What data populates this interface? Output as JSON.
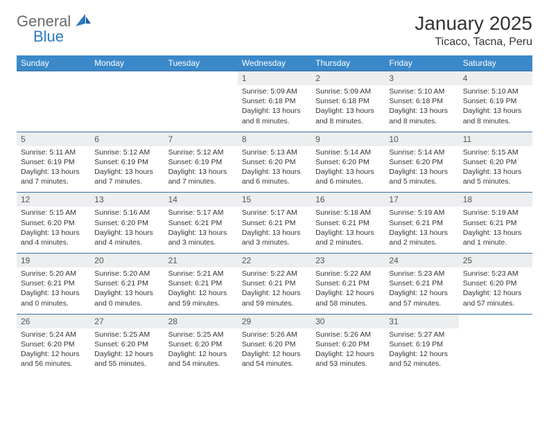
{
  "brand": {
    "name1": "General",
    "name2": "Blue"
  },
  "title": {
    "month": "January 2025",
    "location": "Ticaco, Tacna, Peru"
  },
  "colors": {
    "header_bg": "#3b89c9",
    "header_text": "#ffffff",
    "row_border": "#3b6fa3",
    "daynum_bg": "#eceef0",
    "logo_gray": "#6a6a6a",
    "logo_blue": "#2b7bbf"
  },
  "weekdays": [
    "Sunday",
    "Monday",
    "Tuesday",
    "Wednesday",
    "Thursday",
    "Friday",
    "Saturday"
  ],
  "weeks": [
    [
      null,
      null,
      null,
      {
        "n": "1",
        "sr": "5:09 AM",
        "ss": "6:18 PM",
        "d1": "13 hours",
        "d2": "and 8 minutes."
      },
      {
        "n": "2",
        "sr": "5:09 AM",
        "ss": "6:18 PM",
        "d1": "13 hours",
        "d2": "and 8 minutes."
      },
      {
        "n": "3",
        "sr": "5:10 AM",
        "ss": "6:18 PM",
        "d1": "13 hours",
        "d2": "and 8 minutes."
      },
      {
        "n": "4",
        "sr": "5:10 AM",
        "ss": "6:19 PM",
        "d1": "13 hours",
        "d2": "and 8 minutes."
      }
    ],
    [
      {
        "n": "5",
        "sr": "5:11 AM",
        "ss": "6:19 PM",
        "d1": "13 hours",
        "d2": "and 7 minutes."
      },
      {
        "n": "6",
        "sr": "5:12 AM",
        "ss": "6:19 PM",
        "d1": "13 hours",
        "d2": "and 7 minutes."
      },
      {
        "n": "7",
        "sr": "5:12 AM",
        "ss": "6:19 PM",
        "d1": "13 hours",
        "d2": "and 7 minutes."
      },
      {
        "n": "8",
        "sr": "5:13 AM",
        "ss": "6:20 PM",
        "d1": "13 hours",
        "d2": "and 6 minutes."
      },
      {
        "n": "9",
        "sr": "5:14 AM",
        "ss": "6:20 PM",
        "d1": "13 hours",
        "d2": "and 6 minutes."
      },
      {
        "n": "10",
        "sr": "5:14 AM",
        "ss": "6:20 PM",
        "d1": "13 hours",
        "d2": "and 5 minutes."
      },
      {
        "n": "11",
        "sr": "5:15 AM",
        "ss": "6:20 PM",
        "d1": "13 hours",
        "d2": "and 5 minutes."
      }
    ],
    [
      {
        "n": "12",
        "sr": "5:15 AM",
        "ss": "6:20 PM",
        "d1": "13 hours",
        "d2": "and 4 minutes."
      },
      {
        "n": "13",
        "sr": "5:16 AM",
        "ss": "6:20 PM",
        "d1": "13 hours",
        "d2": "and 4 minutes."
      },
      {
        "n": "14",
        "sr": "5:17 AM",
        "ss": "6:21 PM",
        "d1": "13 hours",
        "d2": "and 3 minutes."
      },
      {
        "n": "15",
        "sr": "5:17 AM",
        "ss": "6:21 PM",
        "d1": "13 hours",
        "d2": "and 3 minutes."
      },
      {
        "n": "16",
        "sr": "5:18 AM",
        "ss": "6:21 PM",
        "d1": "13 hours",
        "d2": "and 2 minutes."
      },
      {
        "n": "17",
        "sr": "5:19 AM",
        "ss": "6:21 PM",
        "d1": "13 hours",
        "d2": "and 2 minutes."
      },
      {
        "n": "18",
        "sr": "5:19 AM",
        "ss": "6:21 PM",
        "d1": "13 hours",
        "d2": "and 1 minute."
      }
    ],
    [
      {
        "n": "19",
        "sr": "5:20 AM",
        "ss": "6:21 PM",
        "d1": "13 hours",
        "d2": "and 0 minutes."
      },
      {
        "n": "20",
        "sr": "5:20 AM",
        "ss": "6:21 PM",
        "d1": "13 hours",
        "d2": "and 0 minutes."
      },
      {
        "n": "21",
        "sr": "5:21 AM",
        "ss": "6:21 PM",
        "d1": "12 hours",
        "d2": "and 59 minutes."
      },
      {
        "n": "22",
        "sr": "5:22 AM",
        "ss": "6:21 PM",
        "d1": "12 hours",
        "d2": "and 59 minutes."
      },
      {
        "n": "23",
        "sr": "5:22 AM",
        "ss": "6:21 PM",
        "d1": "12 hours",
        "d2": "and 58 minutes."
      },
      {
        "n": "24",
        "sr": "5:23 AM",
        "ss": "6:21 PM",
        "d1": "12 hours",
        "d2": "and 57 minutes."
      },
      {
        "n": "25",
        "sr": "5:23 AM",
        "ss": "6:20 PM",
        "d1": "12 hours",
        "d2": "and 57 minutes."
      }
    ],
    [
      {
        "n": "26",
        "sr": "5:24 AM",
        "ss": "6:20 PM",
        "d1": "12 hours",
        "d2": "and 56 minutes."
      },
      {
        "n": "27",
        "sr": "5:25 AM",
        "ss": "6:20 PM",
        "d1": "12 hours",
        "d2": "and 55 minutes."
      },
      {
        "n": "28",
        "sr": "5:25 AM",
        "ss": "6:20 PM",
        "d1": "12 hours",
        "d2": "and 54 minutes."
      },
      {
        "n": "29",
        "sr": "5:26 AM",
        "ss": "6:20 PM",
        "d1": "12 hours",
        "d2": "and 54 minutes."
      },
      {
        "n": "30",
        "sr": "5:26 AM",
        "ss": "6:20 PM",
        "d1": "12 hours",
        "d2": "and 53 minutes."
      },
      {
        "n": "31",
        "sr": "5:27 AM",
        "ss": "6:19 PM",
        "d1": "12 hours",
        "d2": "and 52 minutes."
      },
      null
    ]
  ],
  "labels": {
    "sunrise": "Sunrise:",
    "sunset": "Sunset:",
    "daylight": "Daylight:"
  }
}
